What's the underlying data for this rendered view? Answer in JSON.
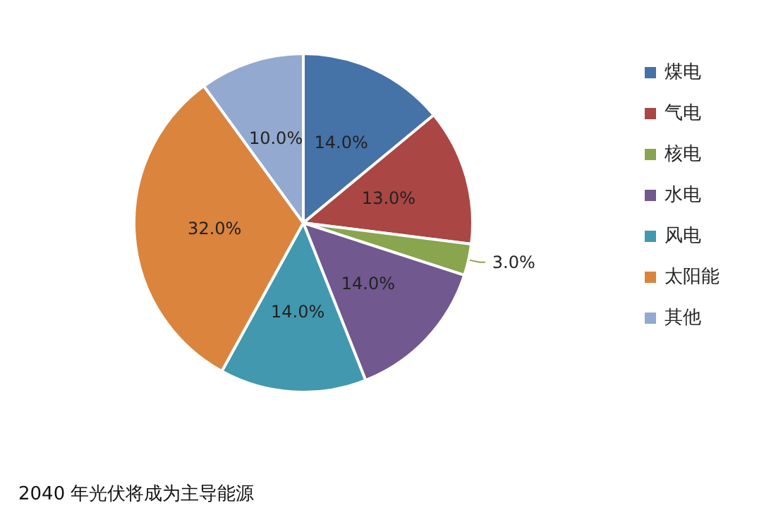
{
  "chart_data": {
    "type": "pie",
    "title": "2040 年光伏将成为主导能源",
    "categories": [
      "煤电",
      "气电",
      "核电",
      "水电",
      "风电",
      "太阳能",
      "其他"
    ],
    "values": [
      14,
      13,
      3,
      14,
      14,
      32,
      10
    ],
    "value_labels": [
      "14.0%",
      "13.0%",
      "3.0%",
      "14.0%",
      "14.0%",
      "32.0%",
      "10.0%"
    ],
    "colors": [
      "#4572a7",
      "#aa4643",
      "#89a54e",
      "#71588f",
      "#4198af",
      "#db843d",
      "#93a9cf"
    ],
    "legend": "right"
  }
}
